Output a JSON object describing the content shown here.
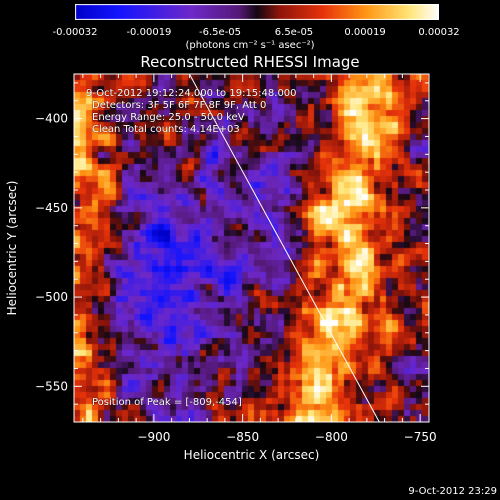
{
  "colorbar": {
    "tick_labels": [
      "-0.00032",
      "-0.00019",
      "-6.5e-05",
      "6.5e-05",
      "0.00019",
      "0.00032"
    ],
    "tick_values": [
      -0.00032,
      -0.00019,
      -6.5e-05,
      6.5e-05,
      0.00019,
      0.00032
    ],
    "range": [
      -0.00032,
      0.00032
    ],
    "units_label": "(photons cm⁻² s⁻¹ asec⁻²)"
  },
  "chart_data": {
    "type": "heatmap",
    "title": "Reconstructed RHESSI Image",
    "xlabel": "Heliocentric X (arcsec)",
    "ylabel": "Heliocentric Y (arcsec)",
    "xlim": [
      -945,
      -745
    ],
    "ylim": [
      -570,
      -375
    ],
    "x_ticks": [
      -900,
      -850,
      -800,
      -750
    ],
    "y_ticks": [
      -550,
      -500,
      -450,
      -400
    ],
    "x_tick_labels": [
      "−900",
      "−850",
      "−800",
      "−750"
    ],
    "y_tick_labels": [
      "−550",
      "−500",
      "−450",
      "−400"
    ],
    "limb_line": [
      [
        -880,
        -375
      ],
      [
        -773,
        -570
      ]
    ],
    "peak": [
      -809,
      -454
    ],
    "colormap": "blue-purple-red-yellow-white"
  },
  "annotations": {
    "time_range": "9-Oct-2012 19:12:24.000 to 19:15:48.000",
    "detectors": "Detectors: 3F 5F 6F 7F 8F 9F, Att 0",
    "energy": "Energy Range: 25.0 - 50.0 keV",
    "clean": "Clean    Total counts: 4.14E+03",
    "peak_text": "Position of Peak = [-809,-454]"
  },
  "footer": {
    "timestamp": "9-Oct-2012 23:29"
  }
}
